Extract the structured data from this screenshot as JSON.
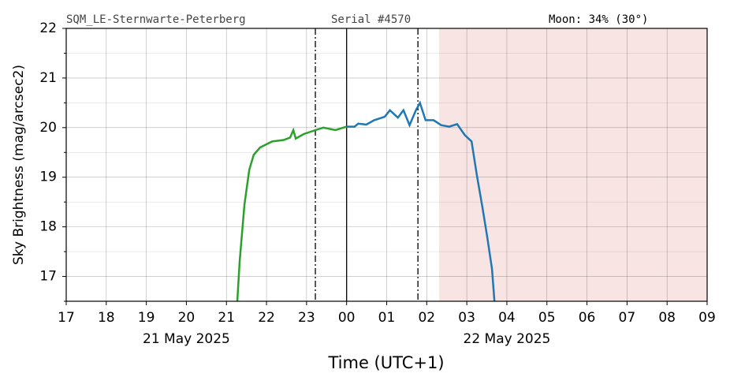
{
  "chart_data": {
    "type": "line",
    "header_left": "SQM_LE-Sternwarte-Peterberg",
    "header_center": "Serial #4570",
    "header_right": "Moon: 34% (30°)",
    "y_label": "Sky Brightness (mag/arcsec2)",
    "x_label": "Time (UTC+1)",
    "date_labels": [
      {
        "x": 20,
        "text": "21 May 2025"
      },
      {
        "x": 28,
        "text": "22 May 2025"
      }
    ],
    "xlim": [
      17,
      33
    ],
    "ylim": [
      16.5,
      22
    ],
    "xticks": [
      17,
      18,
      19,
      20,
      21,
      22,
      23,
      {
        "value": 24,
        "label": "00"
      },
      {
        "value": 25,
        "label": "01"
      },
      {
        "value": 26,
        "label": "02"
      },
      {
        "value": 27,
        "label": "03"
      },
      {
        "value": 28,
        "label": "04"
      },
      {
        "value": 29,
        "label": "05"
      },
      {
        "value": 30,
        "label": "06"
      },
      {
        "value": 31,
        "label": "07"
      },
      {
        "value": 32,
        "label": "08"
      },
      {
        "value": 33,
        "label": "09"
      }
    ],
    "yticks": [
      17,
      18,
      19,
      20,
      21,
      22
    ],
    "yminor_ticks": [
      16.5,
      17.5,
      18.5,
      19.5,
      20.5,
      21.5
    ],
    "grid": true,
    "vlines": [
      {
        "x": 23.22,
        "style": "dashdot"
      },
      {
        "x": 24,
        "style": "solid"
      },
      {
        "x": 25.78,
        "style": "dashdot"
      }
    ],
    "shaded_region": {
      "x": [
        26.31,
        33
      ],
      "color": "#f9e4e4"
    },
    "series": [
      {
        "color": "#2ca02c",
        "x": [
          21.27,
          21.33,
          21.45,
          21.57,
          21.68,
          21.84,
          22.14,
          22.43,
          22.59,
          22.67,
          22.73,
          22.93,
          23.22,
          23.42,
          23.72,
          24.0
        ],
        "values": [
          16.5,
          17.3,
          18.45,
          19.15,
          19.45,
          19.6,
          19.72,
          19.75,
          19.8,
          19.95,
          19.78,
          19.87,
          19.95,
          20.0,
          19.95,
          20.02
        ]
      },
      {
        "color": "#1f77b4",
        "x": [
          24.0,
          24.2,
          24.29,
          24.49,
          24.69,
          24.95,
          25.08,
          25.28,
          25.42,
          25.57,
          25.73,
          25.83,
          25.97,
          26.17,
          26.36,
          26.56,
          26.76,
          26.95,
          27.12,
          27.25,
          27.39,
          27.51,
          27.63,
          27.69
        ],
        "values": [
          20.02,
          20.02,
          20.08,
          20.06,
          20.15,
          20.22,
          20.35,
          20.2,
          20.35,
          20.05,
          20.35,
          20.5,
          20.15,
          20.15,
          20.05,
          20.02,
          20.07,
          19.85,
          19.72,
          19.05,
          18.4,
          17.8,
          17.15,
          16.5
        ]
      }
    ]
  }
}
